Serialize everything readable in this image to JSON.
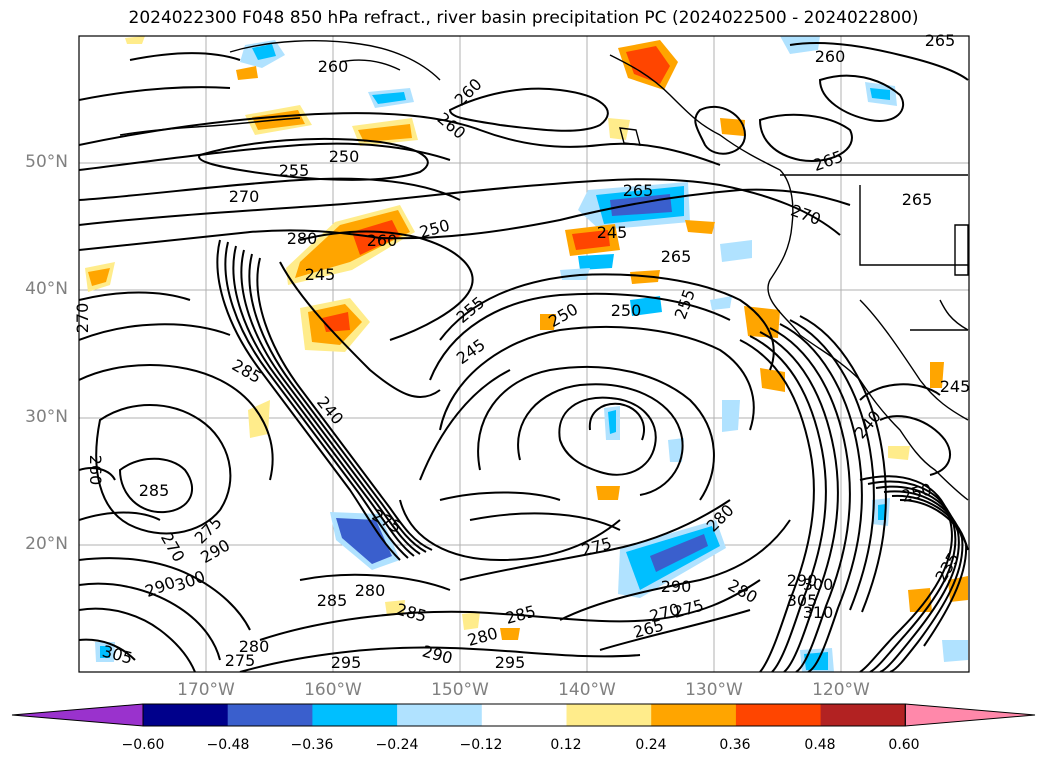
{
  "title": "2024022300 F048 850 hPa refract., river basin precipitation PC (2024022500 - 2024022800)",
  "lat_labels": [
    "50°N",
    "40°N",
    "30°N",
    "20°N"
  ],
  "lon_labels": [
    "170°W",
    "160°W",
    "150°W",
    "140°W",
    "130°W",
    "120°W"
  ],
  "contour_labels": [
    {
      "text": "260"
    },
    {
      "text": "260"
    },
    {
      "text": "260"
    },
    {
      "text": "260"
    },
    {
      "text": "265"
    },
    {
      "text": "250"
    },
    {
      "text": "255"
    },
    {
      "text": "265"
    },
    {
      "text": "265"
    },
    {
      "text": "270"
    },
    {
      "text": "270"
    },
    {
      "text": "265"
    },
    {
      "text": "280"
    },
    {
      "text": "260"
    },
    {
      "text": "250"
    },
    {
      "text": "245"
    },
    {
      "text": "245"
    },
    {
      "text": "265"
    },
    {
      "text": "270"
    },
    {
      "text": "255"
    },
    {
      "text": "250"
    },
    {
      "text": "250"
    },
    {
      "text": "255"
    },
    {
      "text": "245"
    },
    {
      "text": "285"
    },
    {
      "text": "240"
    },
    {
      "text": "245"
    },
    {
      "text": "240"
    },
    {
      "text": "285"
    },
    {
      "text": "260"
    },
    {
      "text": "250"
    },
    {
      "text": "275"
    },
    {
      "text": "275"
    },
    {
      "text": "280"
    },
    {
      "text": "270"
    },
    {
      "text": "275"
    },
    {
      "text": "290"
    },
    {
      "text": "290"
    },
    {
      "text": "300"
    },
    {
      "text": "280"
    },
    {
      "text": "290"
    },
    {
      "text": "275"
    },
    {
      "text": "280"
    },
    {
      "text": "285"
    },
    {
      "text": "285"
    },
    {
      "text": "285"
    },
    {
      "text": "280"
    },
    {
      "text": "265"
    },
    {
      "text": "270"
    },
    {
      "text": "290"
    },
    {
      "text": "300"
    },
    {
      "text": "305"
    },
    {
      "text": "310"
    },
    {
      "text": "235"
    },
    {
      "text": "305"
    },
    {
      "text": "280"
    },
    {
      "text": "275"
    },
    {
      "text": "295"
    },
    {
      "text": "290"
    },
    {
      "text": "295"
    }
  ],
  "colorbar": {
    "colors": [
      "#9a32cd",
      "#00008b",
      "#3a5fcd",
      "#00bfff",
      "#b0e2ff",
      "#ffffff",
      "#ffec8b",
      "#ffa500",
      "#ff4500",
      "#b22222",
      "#ff88aa"
    ],
    "ticks": [
      "−0.60",
      "−0.48",
      "−0.36",
      "−0.24",
      "−0.12",
      "0.12",
      "0.24",
      "0.36",
      "0.48",
      "0.60"
    ]
  }
}
